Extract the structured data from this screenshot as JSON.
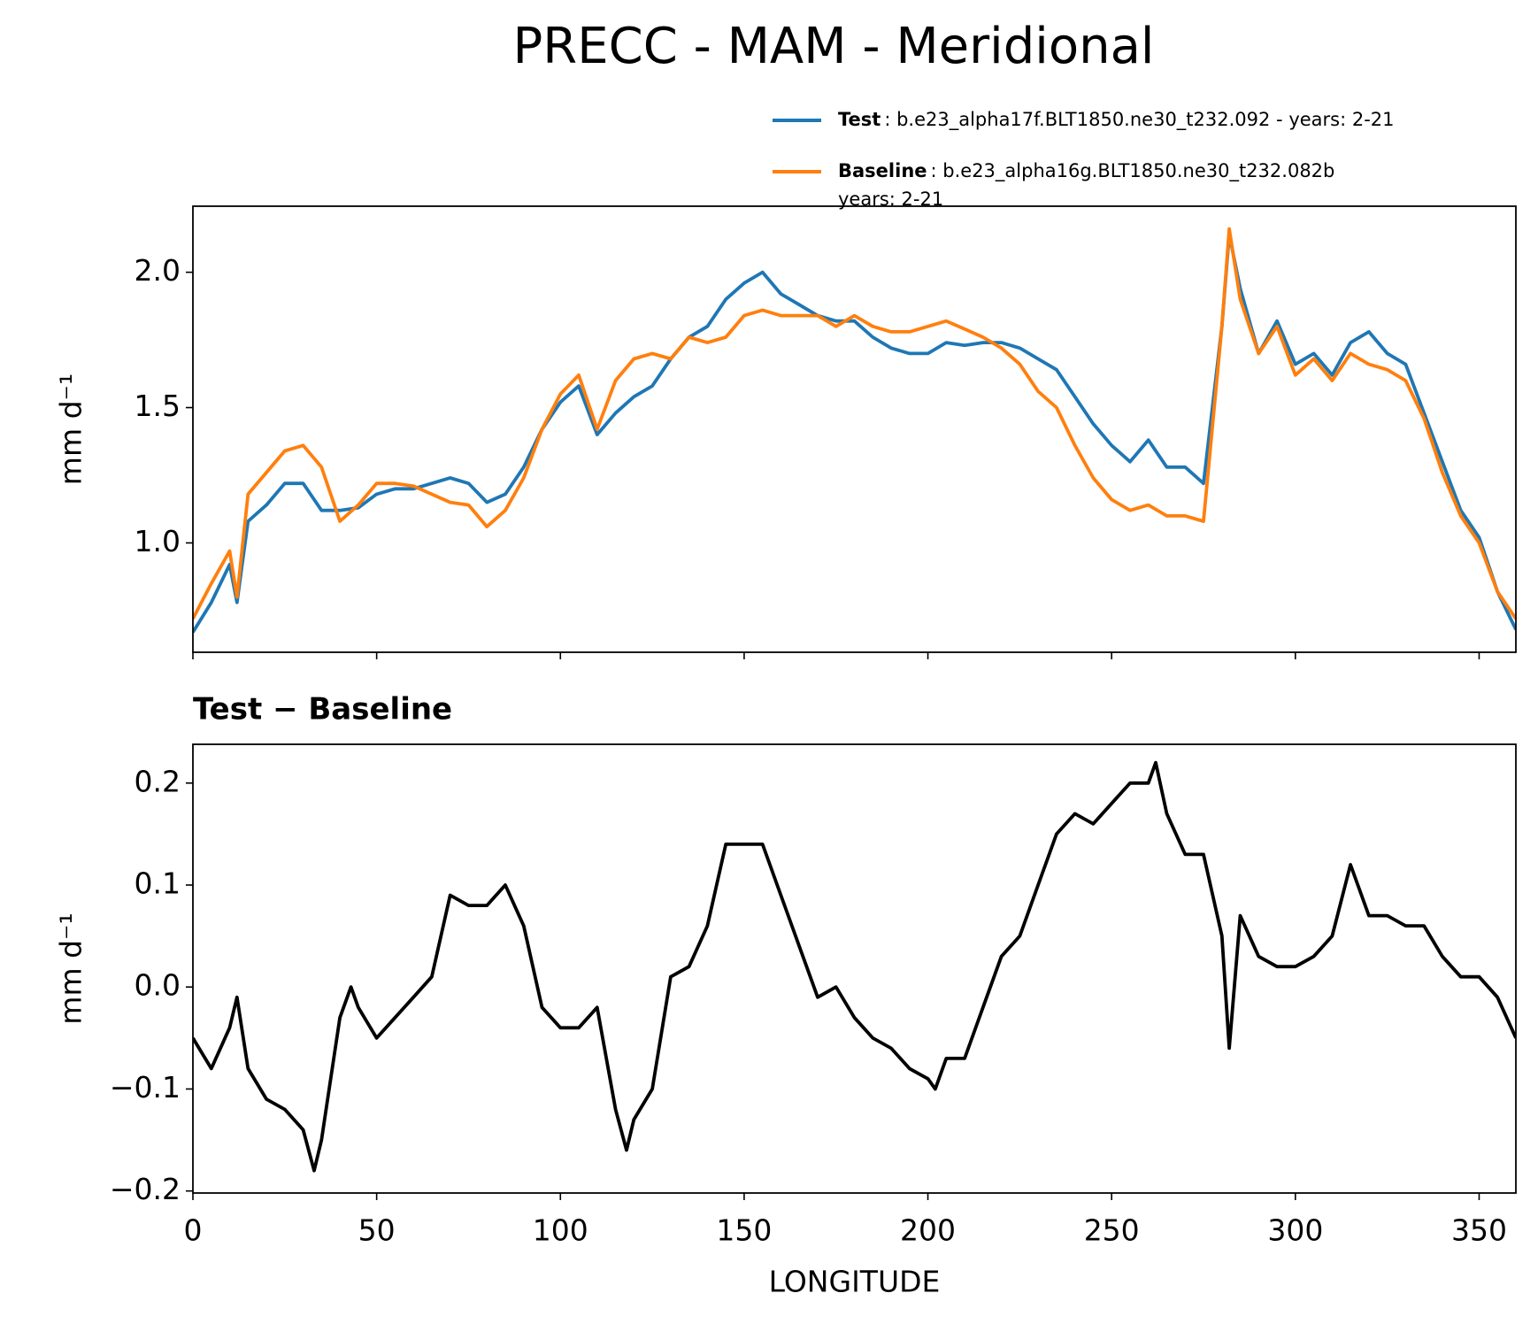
{
  "title": "PRECC - MAM - Meridional",
  "chart_data": [
    {
      "type": "line",
      "ylabel": "mm d⁻¹",
      "x": [
        0,
        5,
        10,
        12,
        15,
        20,
        25,
        30,
        35,
        40,
        45,
        50,
        55,
        60,
        65,
        70,
        75,
        80,
        85,
        90,
        95,
        100,
        105,
        110,
        115,
        120,
        125,
        130,
        135,
        140,
        145,
        150,
        155,
        160,
        165,
        170,
        175,
        180,
        185,
        190,
        195,
        200,
        205,
        210,
        215,
        220,
        225,
        230,
        235,
        240,
        245,
        250,
        255,
        260,
        265,
        270,
        275,
        280,
        282,
        285,
        290,
        295,
        300,
        305,
        310,
        315,
        320,
        325,
        330,
        335,
        340,
        345,
        350,
        355,
        360
      ],
      "series": [
        {
          "name": "Test",
          "description": [
            ": b.e23_alpha17f.BLT1850.ne30_t232.092 - years: 2-21"
          ],
          "color": "#1f77b4",
          "values": [
            0.67,
            0.78,
            0.92,
            0.78,
            1.08,
            1.14,
            1.22,
            1.22,
            1.12,
            1.12,
            1.13,
            1.18,
            1.2,
            1.2,
            1.22,
            1.24,
            1.22,
            1.15,
            1.18,
            1.28,
            1.42,
            1.52,
            1.58,
            1.4,
            1.48,
            1.54,
            1.58,
            1.68,
            1.76,
            1.8,
            1.9,
            1.96,
            2.0,
            1.92,
            1.88,
            1.84,
            1.82,
            1.82,
            1.76,
            1.72,
            1.7,
            1.7,
            1.74,
            1.73,
            1.74,
            1.74,
            1.72,
            1.68,
            1.64,
            1.54,
            1.44,
            1.36,
            1.3,
            1.38,
            1.28,
            1.28,
            1.22,
            1.8,
            2.14,
            1.94,
            1.7,
            1.82,
            1.66,
            1.7,
            1.62,
            1.74,
            1.78,
            1.7,
            1.66,
            1.48,
            1.3,
            1.12,
            1.02,
            0.82,
            0.68
          ]
        },
        {
          "name": "Baseline",
          "description": [
            ": b.e23_alpha16g.BLT1850.ne30_t232.082b",
            "years: 2-21"
          ],
          "color": "#ff7f0e",
          "values": [
            0.72,
            0.85,
            0.97,
            0.8,
            1.18,
            1.26,
            1.34,
            1.36,
            1.28,
            1.08,
            1.14,
            1.22,
            1.22,
            1.21,
            1.18,
            1.15,
            1.14,
            1.06,
            1.12,
            1.24,
            1.42,
            1.55,
            1.62,
            1.42,
            1.6,
            1.68,
            1.7,
            1.68,
            1.76,
            1.74,
            1.76,
            1.84,
            1.86,
            1.84,
            1.84,
            1.84,
            1.8,
            1.84,
            1.8,
            1.78,
            1.78,
            1.8,
            1.82,
            1.79,
            1.76,
            1.72,
            1.66,
            1.56,
            1.5,
            1.36,
            1.24,
            1.16,
            1.12,
            1.14,
            1.1,
            1.1,
            1.08,
            1.8,
            2.16,
            1.9,
            1.7,
            1.8,
            1.62,
            1.68,
            1.6,
            1.7,
            1.66,
            1.64,
            1.6,
            1.46,
            1.26,
            1.1,
            1.0,
            0.82,
            0.72
          ]
        }
      ],
      "xlim": [
        0,
        360
      ],
      "xticks": [
        0,
        50,
        100,
        150,
        200,
        250,
        300,
        350
      ],
      "ylim": [
        0.596,
        2.244
      ],
      "yticks": [
        {
          "value": 1.0,
          "label": "1.0"
        },
        1.5,
        {
          "value": 2.0,
          "label": "2.0"
        }
      ]
    },
    {
      "type": "line",
      "title": "Test − Baseline",
      "xlabel": "LONGITUDE",
      "ylabel": "mm d⁻¹",
      "x": [
        0,
        5,
        10,
        12,
        15,
        20,
        25,
        30,
        33,
        35,
        40,
        43,
        45,
        50,
        55,
        60,
        65,
        70,
        75,
        80,
        85,
        90,
        95,
        100,
        105,
        110,
        115,
        118,
        120,
        125,
        130,
        135,
        140,
        145,
        150,
        155,
        160,
        165,
        170,
        175,
        180,
        185,
        190,
        195,
        200,
        202,
        205,
        210,
        215,
        220,
        225,
        230,
        235,
        240,
        245,
        250,
        255,
        260,
        262,
        265,
        270,
        275,
        280,
        282,
        285,
        290,
        295,
        300,
        305,
        310,
        315,
        320,
        325,
        330,
        335,
        340,
        345,
        350,
        355,
        360
      ],
      "series": [
        {
          "name": "Test − Baseline",
          "color": "#000000",
          "values": [
            -0.05,
            -0.08,
            -0.04,
            -0.01,
            -0.08,
            -0.11,
            -0.12,
            -0.14,
            -0.18,
            -0.15,
            -0.03,
            0.0,
            -0.02,
            -0.05,
            -0.03,
            -0.01,
            0.01,
            0.09,
            0.08,
            0.08,
            0.1,
            0.06,
            -0.02,
            -0.04,
            -0.04,
            -0.02,
            -0.12,
            -0.16,
            -0.13,
            -0.1,
            0.01,
            0.02,
            0.06,
            0.14,
            0.14,
            0.14,
            0.09,
            0.04,
            -0.01,
            0.0,
            -0.03,
            -0.05,
            -0.06,
            -0.08,
            -0.09,
            -0.1,
            -0.07,
            -0.07,
            -0.02,
            0.03,
            0.05,
            0.1,
            0.15,
            0.17,
            0.16,
            0.18,
            0.2,
            0.2,
            0.22,
            0.17,
            0.13,
            0.13,
            0.05,
            -0.06,
            0.07,
            0.03,
            0.02,
            0.02,
            0.03,
            0.05,
            0.12,
            0.07,
            0.07,
            0.06,
            0.06,
            0.03,
            0.01,
            0.01,
            -0.01,
            -0.05
          ]
        }
      ],
      "xlim": [
        0,
        360
      ],
      "xticks": [
        0,
        50,
        100,
        150,
        200,
        250,
        300,
        350
      ],
      "ylim": [
        -0.202,
        0.238
      ],
      "yticks": [
        {
          "value": -0.2,
          "label": "−0.2"
        },
        {
          "value": -0.1,
          "label": "−0.1"
        },
        {
          "value": 0.0,
          "label": "0.0"
        },
        0.1,
        0.2
      ]
    }
  ]
}
